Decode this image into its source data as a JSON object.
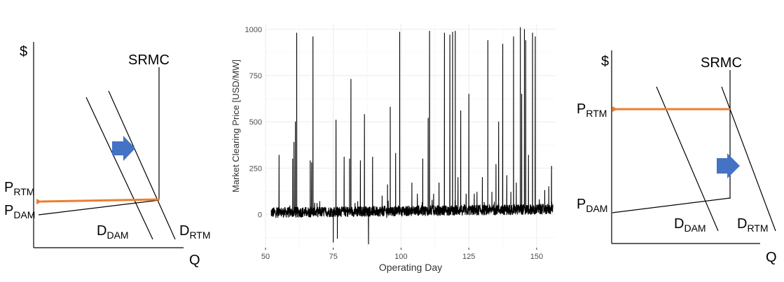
{
  "chart_data": [
    {
      "type": "diagram",
      "labels": {
        "y_axis": "$",
        "x_axis": "Q",
        "srmc": "SRMC",
        "p_rtm": "P",
        "p_rtm_sub": "RTM",
        "p_dam": "P",
        "p_dam_sub": "DAM",
        "d_dam": "D",
        "d_dam_sub": "DAM",
        "d_rtm": "D",
        "d_rtm_sub": "RTM"
      },
      "colors": {
        "price_arrow": "#ed7d31",
        "shift_arrow": "#4472c4"
      }
    },
    {
      "type": "line",
      "xlabel": "Operating Day",
      "ylabel": "Market Clearing Price [USD/MW]",
      "xlim": [
        50,
        157
      ],
      "ylim": [
        -180,
        1030
      ],
      "x_ticks": [
        50,
        75,
        100,
        125,
        150
      ],
      "y_ticks": [
        0,
        250,
        500,
        750,
        1000
      ],
      "grid": true,
      "color": "#000000",
      "base_range": [
        52,
        156
      ],
      "spikes": [
        [
          55,
          320
        ],
        [
          60,
          300
        ],
        [
          60.5,
          390
        ],
        [
          61,
          500
        ],
        [
          61.5,
          980
        ],
        [
          66.5,
          290
        ],
        [
          67,
          280
        ],
        [
          67.5,
          960
        ],
        [
          69,
          60
        ],
        [
          70,
          70
        ],
        [
          75,
          -150
        ],
        [
          76,
          510
        ],
        [
          76.5,
          -130
        ],
        [
          79,
          310
        ],
        [
          81,
          300
        ],
        [
          81.5,
          730
        ],
        [
          83,
          60
        ],
        [
          84,
          70
        ],
        [
          85,
          290
        ],
        [
          86.5,
          540
        ],
        [
          88,
          -160
        ],
        [
          89.5,
          310
        ],
        [
          93,
          100
        ],
        [
          95,
          160
        ],
        [
          96,
          580
        ],
        [
          98,
          330
        ],
        [
          99.5,
          985
        ],
        [
          104,
          170
        ],
        [
          106,
          110
        ],
        [
          108,
          300
        ],
        [
          110,
          520
        ],
        [
          110.5,
          990
        ],
        [
          112,
          110
        ],
        [
          114,
          170
        ],
        [
          116,
          980
        ],
        [
          118,
          970
        ],
        [
          119,
          985
        ],
        [
          120,
          990
        ],
        [
          121,
          200
        ],
        [
          122,
          560
        ],
        [
          124,
          110
        ],
        [
          125,
          650
        ],
        [
          127,
          110
        ],
        [
          128,
          120
        ],
        [
          130,
          200
        ],
        [
          132,
          940
        ],
        [
          133.5,
          120
        ],
        [
          135,
          270
        ],
        [
          136,
          500
        ],
        [
          137.5,
          920
        ],
        [
          139,
          210
        ],
        [
          140.5,
          120
        ],
        [
          141.5,
          960
        ],
        [
          142.5,
          170
        ],
        [
          144,
          1010
        ],
        [
          144.5,
          650
        ],
        [
          145.5,
          1000
        ],
        [
          146,
          940
        ],
        [
          147,
          320
        ],
        [
          148.5,
          980
        ],
        [
          149.5,
          960
        ],
        [
          151,
          80
        ],
        [
          153,
          130
        ],
        [
          154.5,
          150
        ],
        [
          155.5,
          260
        ]
      ]
    },
    {
      "type": "diagram",
      "labels": {
        "y_axis": "$",
        "x_axis": "Q",
        "srmc": "SRMC",
        "p_rtm": "P",
        "p_rtm_sub": "RTM",
        "p_dam": "P",
        "p_dam_sub": "DAM",
        "d_dam": "D",
        "d_dam_sub": "DAM",
        "d_rtm": "D",
        "d_rtm_sub": "RTM"
      },
      "colors": {
        "price_arrow": "#ed7d31",
        "shift_arrow": "#4472c4"
      }
    }
  ]
}
